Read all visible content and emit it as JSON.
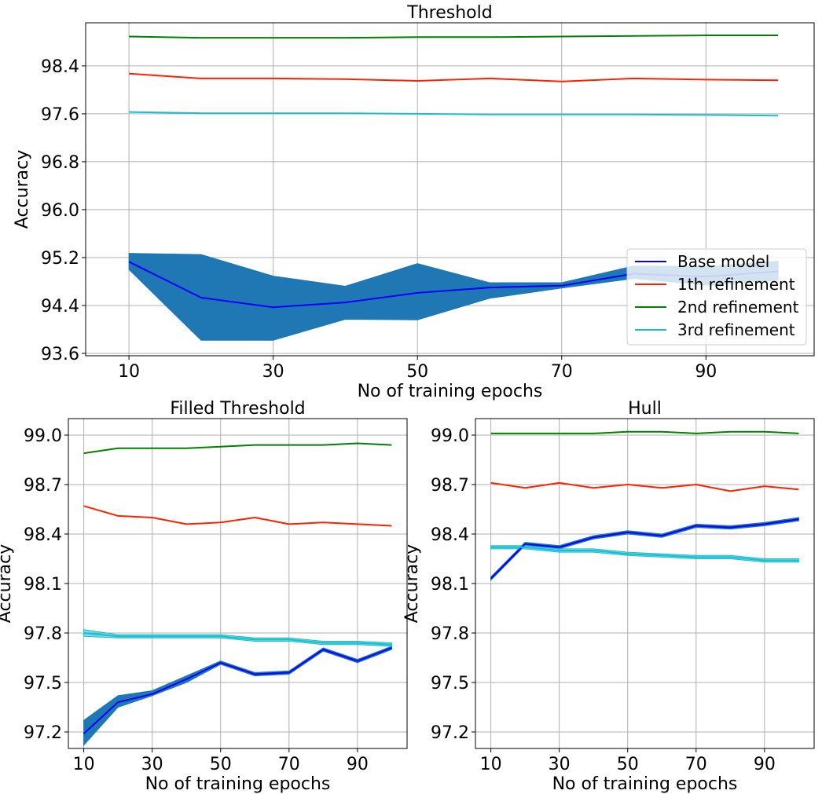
{
  "colors": {
    "base": "#0000ff",
    "base_band": "#1f77b4",
    "ref1": "#ff2200",
    "ref2": "#008000",
    "ref3": "#17becf",
    "grid": "#b0b0b0",
    "axis": "#000000"
  },
  "chart_data": [
    {
      "type": "line",
      "title": "Threshold",
      "xlabel": "No of training epochs",
      "ylabel": "Accuracy",
      "xlim": [
        4,
        105
      ],
      "ylim": [
        93.56,
        99.12
      ],
      "xticks": [
        10,
        30,
        50,
        70,
        90
      ],
      "yticks": [
        93.6,
        94.4,
        95.2,
        96.0,
        96.8,
        97.6,
        98.4
      ],
      "ytick_labels": [
        "93.6",
        "94.4",
        "95.2",
        "96.0",
        "96.8",
        "97.6",
        "98.4"
      ],
      "grid": true,
      "legend": "lower-right",
      "x": [
        10,
        20,
        30,
        40,
        50,
        60,
        70,
        80,
        90,
        100
      ],
      "series": [
        {
          "name": "Base model",
          "color_key": "base",
          "values": [
            95.13,
            94.53,
            94.37,
            94.45,
            94.61,
            94.7,
            94.73,
            94.93,
            94.88,
            94.97
          ],
          "band_low": [
            95.0,
            93.82,
            93.82,
            94.17,
            94.16,
            94.52,
            94.69,
            94.85,
            94.74,
            94.82
          ],
          "band_high": [
            95.27,
            95.25,
            94.89,
            94.72,
            95.1,
            94.78,
            94.78,
            95.06,
            95.05,
            95.14
          ]
        },
        {
          "name": "1th refinement",
          "color_key": "ref1",
          "values": [
            98.27,
            98.19,
            98.19,
            98.18,
            98.15,
            98.19,
            98.14,
            98.19,
            98.17,
            98.16
          ]
        },
        {
          "name": "2nd refinement",
          "color_key": "ref2",
          "values": [
            98.89,
            98.87,
            98.87,
            98.87,
            98.88,
            98.88,
            98.89,
            98.9,
            98.91,
            98.91
          ]
        },
        {
          "name": "3rd refinement",
          "color_key": "ref3",
          "values": [
            97.63,
            97.61,
            97.61,
            97.61,
            97.6,
            97.59,
            97.59,
            97.59,
            97.58,
            97.57
          ]
        }
      ]
    },
    {
      "type": "line",
      "title": "Filled Threshold",
      "xlabel": "No of training epochs",
      "ylabel": "Accuracy",
      "xlim": [
        5.5,
        104.5
      ],
      "ylim": [
        97.1,
        99.1
      ],
      "xticks": [
        10,
        30,
        50,
        70,
        90
      ],
      "yticks": [
        97.2,
        97.5,
        97.8,
        98.1,
        98.4,
        98.7,
        99.0
      ],
      "ytick_labels": [
        "97.2",
        "97.5",
        "97.8",
        "98.1",
        "98.4",
        "98.7",
        "99.0"
      ],
      "grid": true,
      "x": [
        10,
        20,
        30,
        40,
        50,
        60,
        70,
        80,
        90,
        100
      ],
      "series": [
        {
          "name": "Base model",
          "color_key": "base",
          "values": [
            97.19,
            97.38,
            97.43,
            97.52,
            97.62,
            97.55,
            97.56,
            97.7,
            97.63,
            97.71
          ],
          "band_low": [
            97.12,
            97.35,
            97.42,
            97.5,
            97.61,
            97.54,
            97.55,
            97.69,
            97.62,
            97.7
          ],
          "band_high": [
            97.27,
            97.42,
            97.45,
            97.54,
            97.63,
            97.56,
            97.57,
            97.71,
            97.64,
            97.72
          ]
        },
        {
          "name": "1th refinement",
          "color_key": "ref1",
          "values": [
            98.57,
            98.51,
            98.5,
            98.46,
            98.47,
            98.5,
            98.46,
            98.47,
            98.46,
            98.45
          ]
        },
        {
          "name": "2nd refinement",
          "color_key": "ref2",
          "values": [
            98.89,
            98.92,
            98.92,
            98.92,
            98.93,
            98.94,
            98.94,
            98.94,
            98.95,
            98.94
          ]
        },
        {
          "name": "3rd refinement",
          "color_key": "ref3",
          "values": [
            97.8,
            97.78,
            97.78,
            97.78,
            97.78,
            97.76,
            97.76,
            97.74,
            97.74,
            97.73
          ],
          "band_low": [
            97.78,
            97.77,
            97.77,
            97.77,
            97.77,
            97.75,
            97.75,
            97.73,
            97.73,
            97.72
          ],
          "band_high": [
            97.82,
            97.79,
            97.79,
            97.79,
            97.79,
            97.77,
            97.77,
            97.75,
            97.75,
            97.74
          ]
        }
      ]
    },
    {
      "type": "line",
      "title": "Hull",
      "xlabel": "No of training epochs",
      "ylabel": "Accuracy",
      "xlim": [
        5.5,
        104.5
      ],
      "ylim": [
        97.1,
        99.1
      ],
      "xticks": [
        10,
        30,
        50,
        70,
        90
      ],
      "yticks": [
        97.2,
        97.5,
        97.8,
        98.1,
        98.4,
        98.7,
        99.0
      ],
      "ytick_labels": [
        "97.2",
        "97.5",
        "97.8",
        "98.1",
        "98.4",
        "98.7",
        "99.0"
      ],
      "grid": true,
      "x": [
        10,
        20,
        30,
        40,
        50,
        60,
        70,
        80,
        90,
        100
      ],
      "series": [
        {
          "name": "Base model",
          "color_key": "base",
          "values": [
            98.13,
            98.34,
            98.32,
            98.38,
            98.41,
            98.39,
            98.45,
            98.44,
            98.46,
            98.49
          ],
          "band_low": [
            98.12,
            98.33,
            98.31,
            98.37,
            98.4,
            98.38,
            98.44,
            98.43,
            98.45,
            98.48
          ],
          "band_high": [
            98.14,
            98.35,
            98.33,
            98.39,
            98.42,
            98.4,
            98.46,
            98.45,
            98.47,
            98.5
          ]
        },
        {
          "name": "1th refinement",
          "color_key": "ref1",
          "values": [
            98.71,
            98.68,
            98.71,
            98.68,
            98.7,
            98.68,
            98.7,
            98.66,
            98.69,
            98.67
          ]
        },
        {
          "name": "2nd refinement",
          "color_key": "ref2",
          "values": [
            99.01,
            99.01,
            99.01,
            99.01,
            99.02,
            99.02,
            99.01,
            99.02,
            99.02,
            99.01
          ]
        },
        {
          "name": "3rd refinement",
          "color_key": "ref3",
          "values": [
            98.32,
            98.32,
            98.3,
            98.3,
            98.28,
            98.27,
            98.26,
            98.26,
            98.24,
            98.24
          ],
          "band_low": [
            98.31,
            98.31,
            98.29,
            98.29,
            98.27,
            98.26,
            98.25,
            98.25,
            98.23,
            98.23
          ],
          "band_high": [
            98.33,
            98.33,
            98.31,
            98.31,
            98.29,
            98.28,
            98.27,
            98.27,
            98.25,
            98.25
          ]
        }
      ]
    }
  ]
}
